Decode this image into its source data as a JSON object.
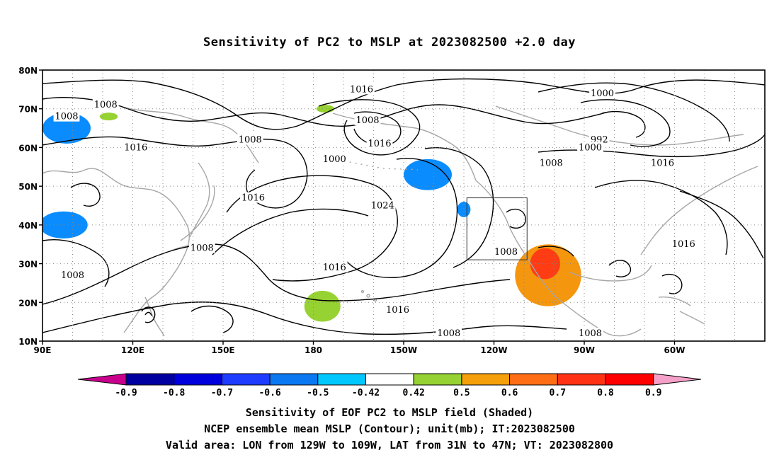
{
  "title": "Sensitivity of PC2 to MSLP at 2023082500 +2.0 day",
  "map": {
    "lat_labels": [
      "80N",
      "70N",
      "60N",
      "50N",
      "40N",
      "30N",
      "20N",
      "10N"
    ],
    "lon_labels": [
      "90E",
      "120E",
      "150E",
      "180",
      "150W",
      "120W",
      "90W",
      "60W"
    ],
    "contour_labels": [
      {
        "text": "1016",
        "lon": 196,
        "lat": 75
      },
      {
        "text": "1000",
        "lon": 276,
        "lat": 74
      },
      {
        "text": "1008",
        "lon": 111,
        "lat": 71
      },
      {
        "text": "1008",
        "lon": 98,
        "lat": 68
      },
      {
        "text": "1008",
        "lon": 198,
        "lat": 67
      },
      {
        "text": "1008",
        "lon": 159,
        "lat": 62
      },
      {
        "text": "1016",
        "lon": 121,
        "lat": 60
      },
      {
        "text": "1016",
        "lon": 202,
        "lat": 61
      },
      {
        "text": "1000",
        "lon": 187,
        "lat": 57
      },
      {
        "text": "992",
        "lon": 275,
        "lat": 62
      },
      {
        "text": "1000",
        "lon": 272,
        "lat": 60
      },
      {
        "text": "1008",
        "lon": 259,
        "lat": 56
      },
      {
        "text": "1016",
        "lon": 296,
        "lat": 56
      },
      {
        "text": "1016",
        "lon": 160,
        "lat": 47
      },
      {
        "text": "1024",
        "lon": 203,
        "lat": 45
      },
      {
        "text": "1008",
        "lon": 143,
        "lat": 34
      },
      {
        "text": "1008",
        "lon": 244,
        "lat": 33
      },
      {
        "text": "1016",
        "lon": 303,
        "lat": 35
      },
      {
        "text": "1016",
        "lon": 187,
        "lat": 29
      },
      {
        "text": "1008",
        "lon": 100,
        "lat": 27
      },
      {
        "text": "1016",
        "lon": 208,
        "lat": 18
      },
      {
        "text": "1008",
        "lon": 225,
        "lat": 12
      },
      {
        "text": "1008",
        "lon": 272,
        "lat": 12
      }
    ],
    "valid_box": {
      "lon_min": 231,
      "lon_max": 251,
      "lat_min": 31,
      "lat_max": 47
    },
    "shaded": [
      {
        "level": -0.55,
        "color": "#0a8cff",
        "lon": 98,
        "lat": 65,
        "rx": 8,
        "ry": 4
      },
      {
        "level": -0.55,
        "color": "#0a8cff",
        "lon": 97,
        "lat": 40,
        "rx": 8,
        "ry": 3.5
      },
      {
        "level": -0.55,
        "color": "#0a8cff",
        "lon": 218,
        "lat": 53,
        "rx": 8,
        "ry": 4
      },
      {
        "level": -0.55,
        "color": "#0a8cff",
        "lon": 230,
        "lat": 44,
        "rx": 2.2,
        "ry": 2
      },
      {
        "level": 0.45,
        "color": "#96d232",
        "lon": 183,
        "lat": 19,
        "rx": 6,
        "ry": 4
      },
      {
        "level": 0.45,
        "color": "#96d232",
        "lon": 184,
        "lat": 70,
        "rx": 3,
        "ry": 1
      },
      {
        "level": 0.45,
        "color": "#96d232",
        "lon": 112,
        "lat": 68,
        "rx": 3,
        "ry": 1
      },
      {
        "level": 0.55,
        "color": "#f5960f",
        "lon": 258,
        "lat": 27,
        "rx": 11,
        "ry": 8
      },
      {
        "level": 0.75,
        "color": "#ff3c14",
        "lon": 257,
        "lat": 30,
        "rx": 5,
        "ry": 4
      }
    ]
  },
  "colorbar": {
    "ticks": [
      "-0.9",
      "-0.8",
      "-0.7",
      "-0.6",
      "-0.5",
      "-0.42",
      "0.42",
      "0.5",
      "0.6",
      "0.7",
      "0.8",
      "0.9"
    ],
    "colors": [
      "#0000a0",
      "#0000dc",
      "#1e3cff",
      "#0a78f0",
      "#00c8ff",
      "#ffffff",
      "#96d232",
      "#f5a00a",
      "#ff6e14",
      "#ff3214",
      "#ff0000"
    ],
    "left_tri": "#c8008c",
    "right_tri": "#f5a0c8"
  },
  "captions": {
    "line1": "Sensitivity of EOF PC2 to MSLP field (Shaded)",
    "line2": "NCEP ensemble mean MSLP (Contour); unit(mb); IT:2023082500",
    "line3": "Valid area: LON from 129W to 109W, LAT from 31N to 47N; VT: 2023082800"
  },
  "colors": {
    "grid": "#888888",
    "coast": "#a6a6a6",
    "contour": "#000000"
  }
}
